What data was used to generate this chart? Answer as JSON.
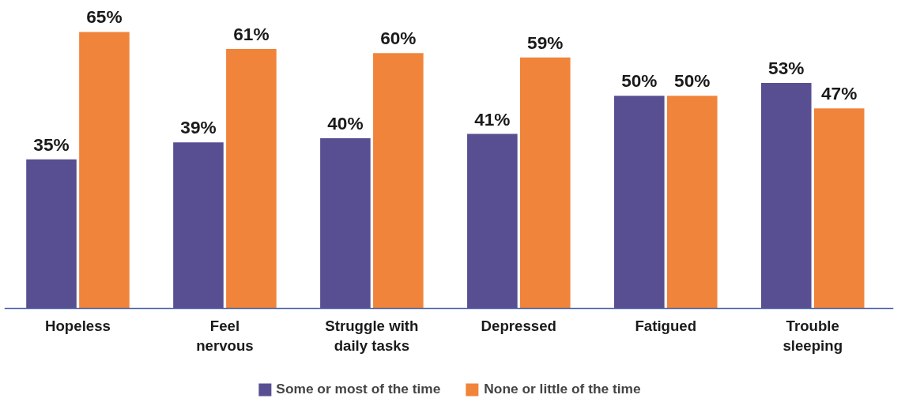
{
  "chart_data": {
    "type": "bar",
    "categories": [
      "Hopeless",
      "Feel\nnervous",
      "Struggle with\ndaily tasks",
      "Depressed",
      "Fatigued",
      "Trouble\nsleeping"
    ],
    "series": [
      {
        "name": "Some or most of the time",
        "color": "#574f92",
        "values": [
          35,
          39,
          40,
          41,
          50,
          53
        ],
        "value_labels": [
          "35%",
          "39%",
          "40%",
          "41%",
          "50%",
          "53%"
        ]
      },
      {
        "name": "None or little of the time",
        "color": "#f0843a",
        "values": [
          65,
          61,
          60,
          59,
          50,
          47
        ],
        "value_labels": [
          "65%",
          "61%",
          "60%",
          "59%",
          "50%",
          "47%"
        ]
      }
    ],
    "legend": "bottom"
  }
}
